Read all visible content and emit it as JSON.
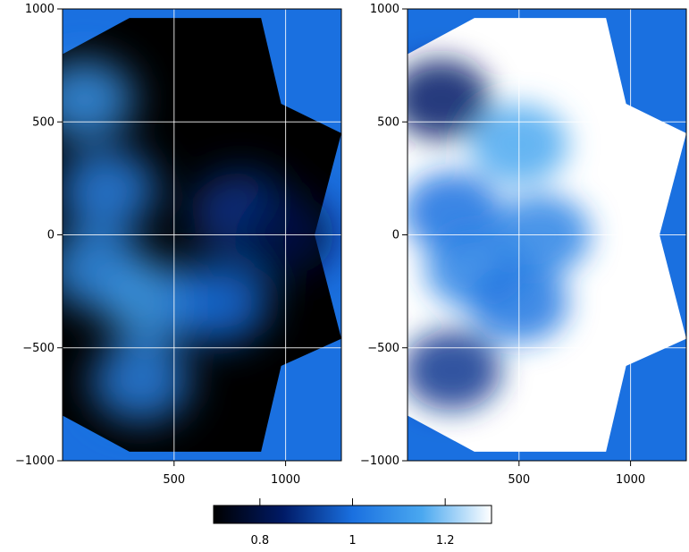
{
  "chart_data": [
    {
      "type": "heatmap",
      "title": "",
      "xlabel": "",
      "ylabel": "",
      "xlim": [
        0,
        1250
      ],
      "ylim": [
        -1000,
        1000
      ],
      "x_ticks": [
        "500",
        "1000"
      ],
      "x_tick_values": [
        500,
        1000
      ],
      "y_ticks": [
        "1000",
        "500",
        "0",
        "−500",
        "−1000"
      ],
      "y_tick_values": [
        1000,
        500,
        0,
        -500,
        -1000
      ],
      "grid": true,
      "background_color": "#1a70e0",
      "mask_fill_color": "#000000",
      "mask_outline": [
        [
          0,
          800
        ],
        [
          300,
          960
        ],
        [
          890,
          960
        ],
        [
          980,
          580
        ],
        [
          1250,
          450
        ],
        [
          1130,
          0
        ],
        [
          1250,
          -460
        ],
        [
          980,
          -580
        ],
        [
          890,
          -960
        ],
        [
          300,
          -960
        ],
        [
          0,
          -800
        ]
      ],
      "field_features": [
        {
          "x": 200,
          "y": 200,
          "value": 1.05
        },
        {
          "x": 150,
          "y": -150,
          "value": 1.08
        },
        {
          "x": 400,
          "y": -300,
          "value": 1.12
        },
        {
          "x": 700,
          "y": -300,
          "value": 1.0
        },
        {
          "x": 100,
          "y": 600,
          "value": 1.1
        },
        {
          "x": 800,
          "y": 100,
          "value": 0.9
        },
        {
          "x": 1000,
          "y": 0,
          "value": 0.8
        },
        {
          "x": 350,
          "y": -650,
          "value": 1.05
        }
      ]
    },
    {
      "type": "heatmap",
      "title": "",
      "xlabel": "",
      "ylabel": "",
      "xlim": [
        0,
        1250
      ],
      "ylim": [
        -1000,
        1000
      ],
      "x_ticks": [
        "500",
        "1000"
      ],
      "x_tick_values": [
        500,
        1000
      ],
      "y_ticks": [
        "1000",
        "500",
        "0",
        "−500",
        "−1000"
      ],
      "y_tick_values": [
        1000,
        500,
        0,
        -500,
        -1000
      ],
      "grid": true,
      "background_color": "#1a70e0",
      "mask_fill_color": "#ffffff",
      "mask_outline": [
        [
          0,
          800
        ],
        [
          300,
          960
        ],
        [
          890,
          960
        ],
        [
          980,
          580
        ],
        [
          1250,
          450
        ],
        [
          1130,
          0
        ],
        [
          1250,
          -460
        ],
        [
          980,
          -580
        ],
        [
          890,
          -960
        ],
        [
          300,
          -960
        ],
        [
          0,
          -800
        ]
      ],
      "field_features": [
        {
          "x": 150,
          "y": 600,
          "value": 0.85
        },
        {
          "x": 500,
          "y": 400,
          "value": 1.15
        },
        {
          "x": 200,
          "y": 100,
          "value": 1.0
        },
        {
          "x": 300,
          "y": -150,
          "value": 1.05
        },
        {
          "x": 500,
          "y": -300,
          "value": 1.02
        },
        {
          "x": 200,
          "y": -600,
          "value": 0.9
        },
        {
          "x": 600,
          "y": 0,
          "value": 1.05
        }
      ]
    }
  ],
  "colorbar": {
    "min": 0.7,
    "max": 1.3,
    "ticks": [
      {
        "value": 0.8,
        "label": "0.8"
      },
      {
        "value": 1.0,
        "label": "1"
      },
      {
        "value": 1.2,
        "label": "1.2"
      }
    ],
    "colormap": [
      "#000000",
      "#001a66",
      "#1a70e0",
      "#4aa8f0",
      "#ffffff"
    ]
  }
}
